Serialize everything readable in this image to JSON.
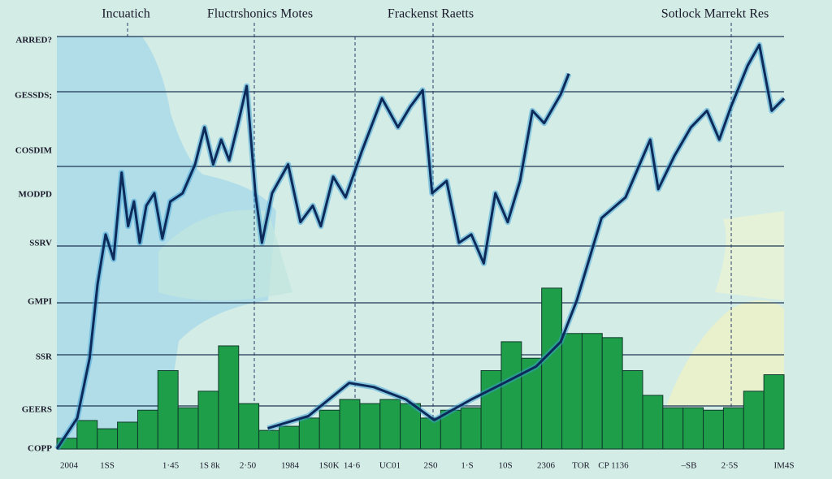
{
  "chart_data": {
    "type": "line",
    "annotations": [
      "Incuatich",
      "Fluctrshonics Motes",
      "Frackenst Raetts",
      "Sotlock Marrekt Res"
    ],
    "y_labels": [
      "ARRED?",
      "GESSDS;",
      "COSDIM",
      "MODPD",
      "SSRV",
      "GMPI",
      "SSR",
      "GEERS",
      "COPP"
    ],
    "x_labels": [
      "2004",
      "1SS",
      "1·45",
      "1S 8k",
      "2·50",
      "1984",
      "1S0K",
      "14·6",
      "UC01",
      "2S0",
      "1·S",
      "10S",
      "2306",
      "TOR",
      "CP 1136",
      "–SB",
      "2·5S",
      "IM4S"
    ],
    "xlim": [
      0,
      100
    ],
    "ylim": [
      0,
      100
    ],
    "bars": {
      "color": "#1f9e4a",
      "values": [
        2.6,
        6.9,
        4.9,
        6.5,
        9.4,
        19,
        10,
        14,
        25,
        11,
        4.5,
        5.5,
        7.5,
        9.4,
        12,
        11,
        12,
        11,
        7.5,
        9.4,
        10,
        19,
        26,
        22,
        39,
        28,
        28,
        27,
        19,
        13,
        10,
        10,
        9.4,
        10,
        14,
        18
      ]
    },
    "series": [
      {
        "color": "#0d2b5a",
        "x": [
          0,
          2.8,
          4.5,
          5.6,
          6.7,
          7.8,
          8.9,
          9.8,
          10.6,
          11.4,
          12.3,
          13.4,
          14.5,
          15.6,
          17.3,
          19,
          20.3,
          21.5,
          22.6,
          23.7,
          24.8,
          26.1,
          27.3,
          28.2,
          29.6,
          31.8,
          33.5,
          35.2,
          36.3,
          38,
          39.7,
          41.9,
          44.7,
          46.9,
          48.6,
          50.3,
          51.6,
          53.6,
          55.3,
          57,
          58.7,
          60.3,
          62,
          63.7,
          65.4,
          67,
          69.3,
          70.4
        ],
        "values": [
          0,
          7.5,
          22,
          40,
          52,
          46,
          67,
          54,
          60,
          50,
          59,
          62,
          51,
          60,
          62,
          69,
          78,
          69,
          75,
          70,
          78,
          88,
          62,
          50,
          62,
          69,
          55,
          59,
          54,
          66,
          61,
          72,
          85,
          78,
          83,
          87,
          62,
          65,
          50,
          52,
          45,
          62,
          55,
          65,
          82,
          79,
          86,
          91
        ]
      },
      {
        "color": "#0d2b5a",
        "x": [
          29,
          34.6,
          40.2,
          43.6,
          48,
          51.9,
          57,
          61.5,
          65.9,
          69.3,
          71.5,
          74.9,
          78.2,
          81.6,
          82.7,
          84.9,
          87.2,
          89.4,
          91.1,
          92.7,
          95,
          96.6,
          98.3,
          100
        ],
        "values": [
          5,
          8,
          16,
          15,
          12,
          7,
          12,
          16,
          20,
          26,
          36,
          56,
          61,
          75,
          63,
          71,
          78,
          82,
          75,
          83,
          93,
          98,
          82,
          85
        ]
      }
    ]
  }
}
